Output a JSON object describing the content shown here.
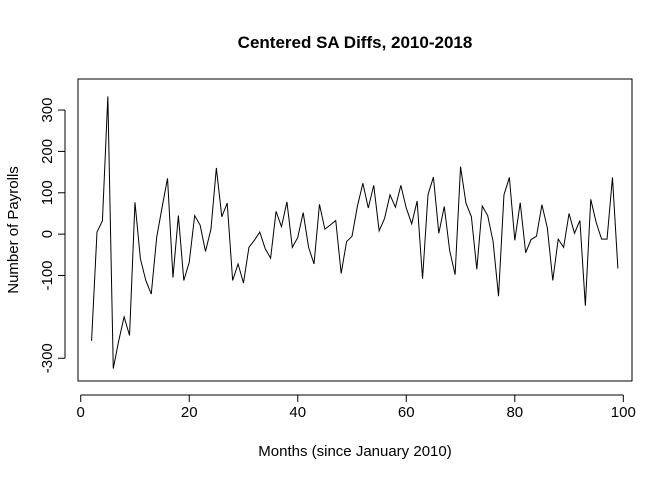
{
  "chart_data": {
    "type": "line",
    "title": "Centered SA Diffs, 2010-2018",
    "xlabel": "Months (since January 2010)",
    "ylabel": "Number of Payrolls",
    "xlim": [
      -0.5,
      101.6
    ],
    "ylim": [
      -355,
      375
    ],
    "x_ticks": [
      0,
      20,
      40,
      60,
      80,
      100
    ],
    "x_tick_labels": [
      "0",
      "20",
      "40",
      "60",
      "80",
      "100"
    ],
    "y_ticks": [
      -300,
      -100,
      0,
      100,
      200,
      300
    ],
    "y_tick_labels": [
      "-300",
      "-100",
      "0",
      "100",
      "200",
      "300"
    ],
    "grid": false,
    "line_color": "#000000",
    "series": [
      {
        "x": [
          2,
          3,
          4,
          5,
          6,
          7,
          8,
          9,
          10,
          11,
          12,
          13,
          14,
          15,
          16,
          17,
          18,
          19,
          20,
          21,
          22,
          23,
          24,
          25,
          26,
          27,
          28,
          29,
          30,
          31,
          32,
          33,
          34,
          35,
          36,
          37,
          38,
          39,
          40,
          41,
          42,
          43,
          44,
          45,
          46,
          47,
          48,
          49,
          50,
          51,
          52,
          53,
          54,
          55,
          56,
          57,
          58,
          59,
          60,
          61,
          62,
          63,
          64,
          65,
          66,
          67,
          68,
          69,
          70,
          71,
          72,
          73,
          74,
          75,
          76,
          77,
          78,
          79,
          80,
          81,
          82,
          83,
          84,
          85,
          86,
          87,
          88,
          89,
          90,
          91,
          92,
          93,
          94,
          95,
          96,
          97,
          98,
          99
        ],
        "values": [
          -258,
          5,
          32,
          333,
          -325,
          -258,
          -200,
          -245,
          77,
          -60,
          -112,
          -145,
          -8,
          65,
          135,
          -105,
          45,
          -112,
          -68,
          45,
          22,
          -42,
          12,
          160,
          42,
          75,
          -112,
          -72,
          -118,
          -32,
          -15,
          5,
          -35,
          -58,
          55,
          18,
          78,
          -32,
          -8,
          52,
          -32,
          -72,
          72,
          12,
          22,
          33,
          -95,
          -18,
          -5,
          68,
          123,
          63,
          118,
          8,
          38,
          95,
          65,
          118,
          63,
          25,
          80,
          -108,
          95,
          138,
          2,
          67,
          -40,
          -98,
          163,
          75,
          42,
          -85,
          68,
          45,
          -18,
          -150,
          95,
          137,
          -15,
          76,
          -45,
          -13,
          -5,
          71,
          15,
          -112,
          -12,
          -32,
          50,
          2,
          33,
          -173,
          84,
          28,
          -12,
          -12,
          137,
          -83
        ]
      }
    ]
  }
}
